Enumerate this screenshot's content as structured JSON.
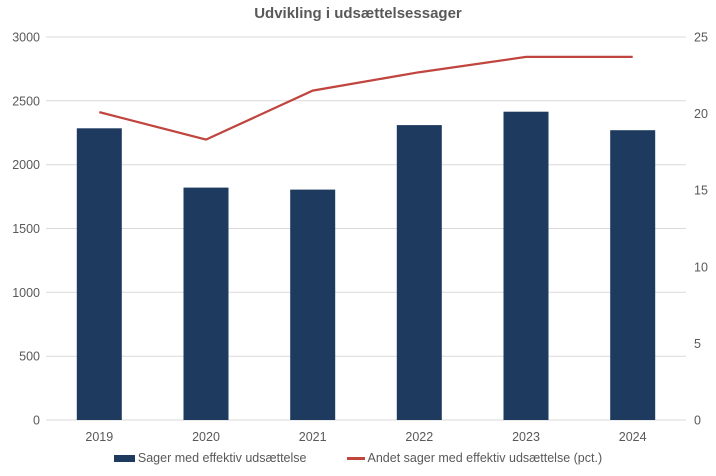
{
  "chart_data": {
    "type": "combo-bar-line",
    "title": "Udvikling i udsættelsessager",
    "categories": [
      "2019",
      "2020",
      "2021",
      "2022",
      "2023",
      "2024"
    ],
    "series": [
      {
        "name": "Sager med effektiv udsættelse",
        "type": "bar",
        "axis": "left",
        "color": "#1e3a5f",
        "values": [
          2285,
          1820,
          1805,
          2310,
          2415,
          2270
        ]
      },
      {
        "name": "Andet sager med effektiv udsættelse (pct.)",
        "type": "line",
        "axis": "right",
        "color": "#c0453e",
        "values": [
          20.1,
          18.3,
          21.5,
          22.7,
          23.7,
          23.7
        ]
      }
    ],
    "left_axis": {
      "min": 0,
      "max": 3000,
      "ticks": [
        0,
        500,
        1000,
        1500,
        2000,
        2500,
        3000
      ]
    },
    "right_axis": {
      "min": 0,
      "max": 25,
      "ticks": [
        0,
        5,
        10,
        15,
        20,
        25
      ]
    },
    "grid": true,
    "legend_position": "bottom",
    "text_color": "#595959",
    "gridline_color": "#d9d9d9",
    "background_color": "#ffffff"
  }
}
